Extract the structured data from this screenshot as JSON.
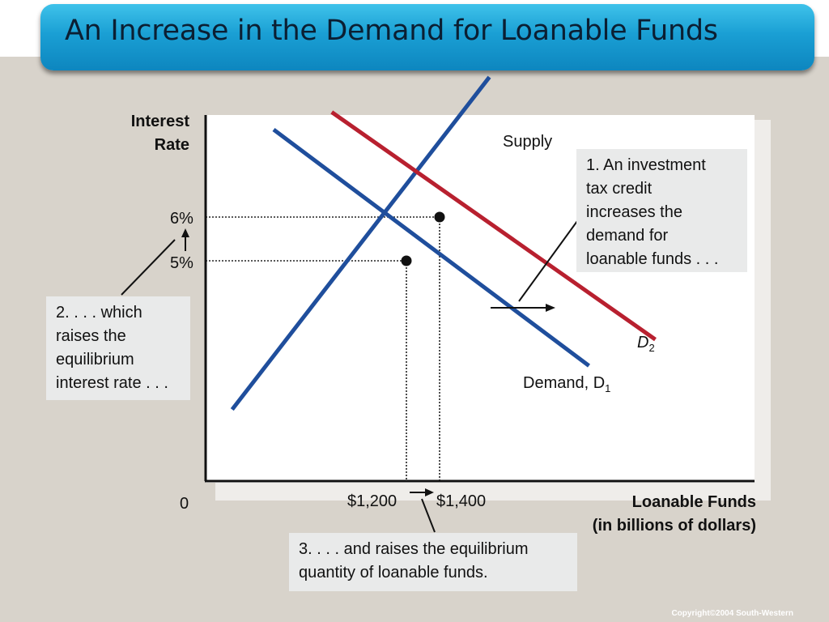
{
  "title": "An Increase in the Demand for Loanable Funds",
  "copyright": "Copyright©2004  South-Western",
  "chart_data": {
    "type": "line",
    "ylabel_line1": "Interest",
    "ylabel_line2": "Rate",
    "xlabel_line1": "Loanable Funds",
    "xlabel_line2": "(in billions of dollars)",
    "origin_label": "0",
    "y_ticks": [
      {
        "label": "6%",
        "value": 6
      },
      {
        "label": "5%",
        "value": 5
      }
    ],
    "x_ticks": [
      {
        "label": "$1,200",
        "value": 1200
      },
      {
        "label": "$1,400",
        "value": 1400
      }
    ],
    "series": [
      {
        "name": "Supply",
        "label": "Supply",
        "color": "#1f4e9c",
        "points": [
          [
            150,
            1.6
          ],
          [
            1700,
            9.2
          ]
        ]
      },
      {
        "name": "Demand, D1",
        "label_main": "Demand, D",
        "label_sub": "1",
        "color": "#1f4e9c",
        "points": [
          [
            400,
            8.0
          ],
          [
            2300,
            2.6
          ]
        ]
      },
      {
        "name": "D2",
        "label_main": "D",
        "label_sub": "2",
        "color": "#b8202f",
        "points": [
          [
            750,
            8.4
          ],
          [
            2700,
            3.2
          ]
        ]
      }
    ],
    "equilibria": [
      {
        "x": 1200,
        "y": 5
      },
      {
        "x": 1400,
        "y": 6
      }
    ],
    "annotations": [
      "1. An investment tax credit increases the demand for loanable funds . . .",
      "2. . . . which raises the equilibrium interest rate . . .",
      "3. . . . and raises the equilibrium quantity of loanable funds."
    ]
  },
  "notes": {
    "n1": [
      "1. An investment",
      "tax credit",
      "increases the",
      "demand for",
      "loanable funds . . ."
    ],
    "n2": [
      "2. . . . which",
      "raises the",
      "equilibrium",
      "interest rate . . ."
    ],
    "n3": [
      "3. . . . and raises the equilibrium",
      "quantity of loanable funds."
    ]
  }
}
